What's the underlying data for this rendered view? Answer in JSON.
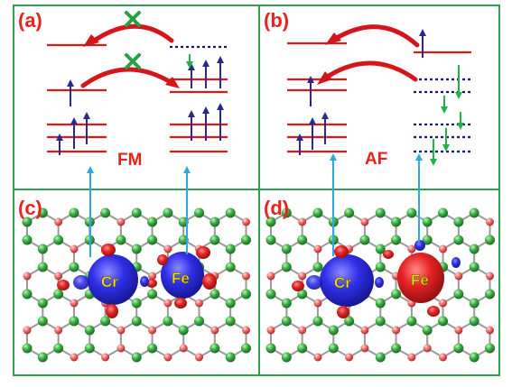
{
  "panels": {
    "a": {
      "label": "(a)",
      "state": "FM"
    },
    "b": {
      "label": "(b)",
      "state": "AF"
    },
    "c": {
      "label": "(c)",
      "atom_left": "Cr",
      "atom_right": "Fe"
    },
    "d": {
      "label": "(d)",
      "atom_left": "Cr",
      "atom_right": "Fe"
    }
  },
  "colors": {
    "frame": "#2e9e4f",
    "label": "#e8231b",
    "level": "#d91a1a",
    "spin_up": "#2a2a8c",
    "spin_down": "#27b04a",
    "hop_arrow": "#d4161b",
    "blocked": "#27a048",
    "connector": "#2fa8e0",
    "spin_density_up": "#2e2ee0",
    "spin_density_down": "#e01e1e",
    "atom_text": "#f2e41a"
  }
}
